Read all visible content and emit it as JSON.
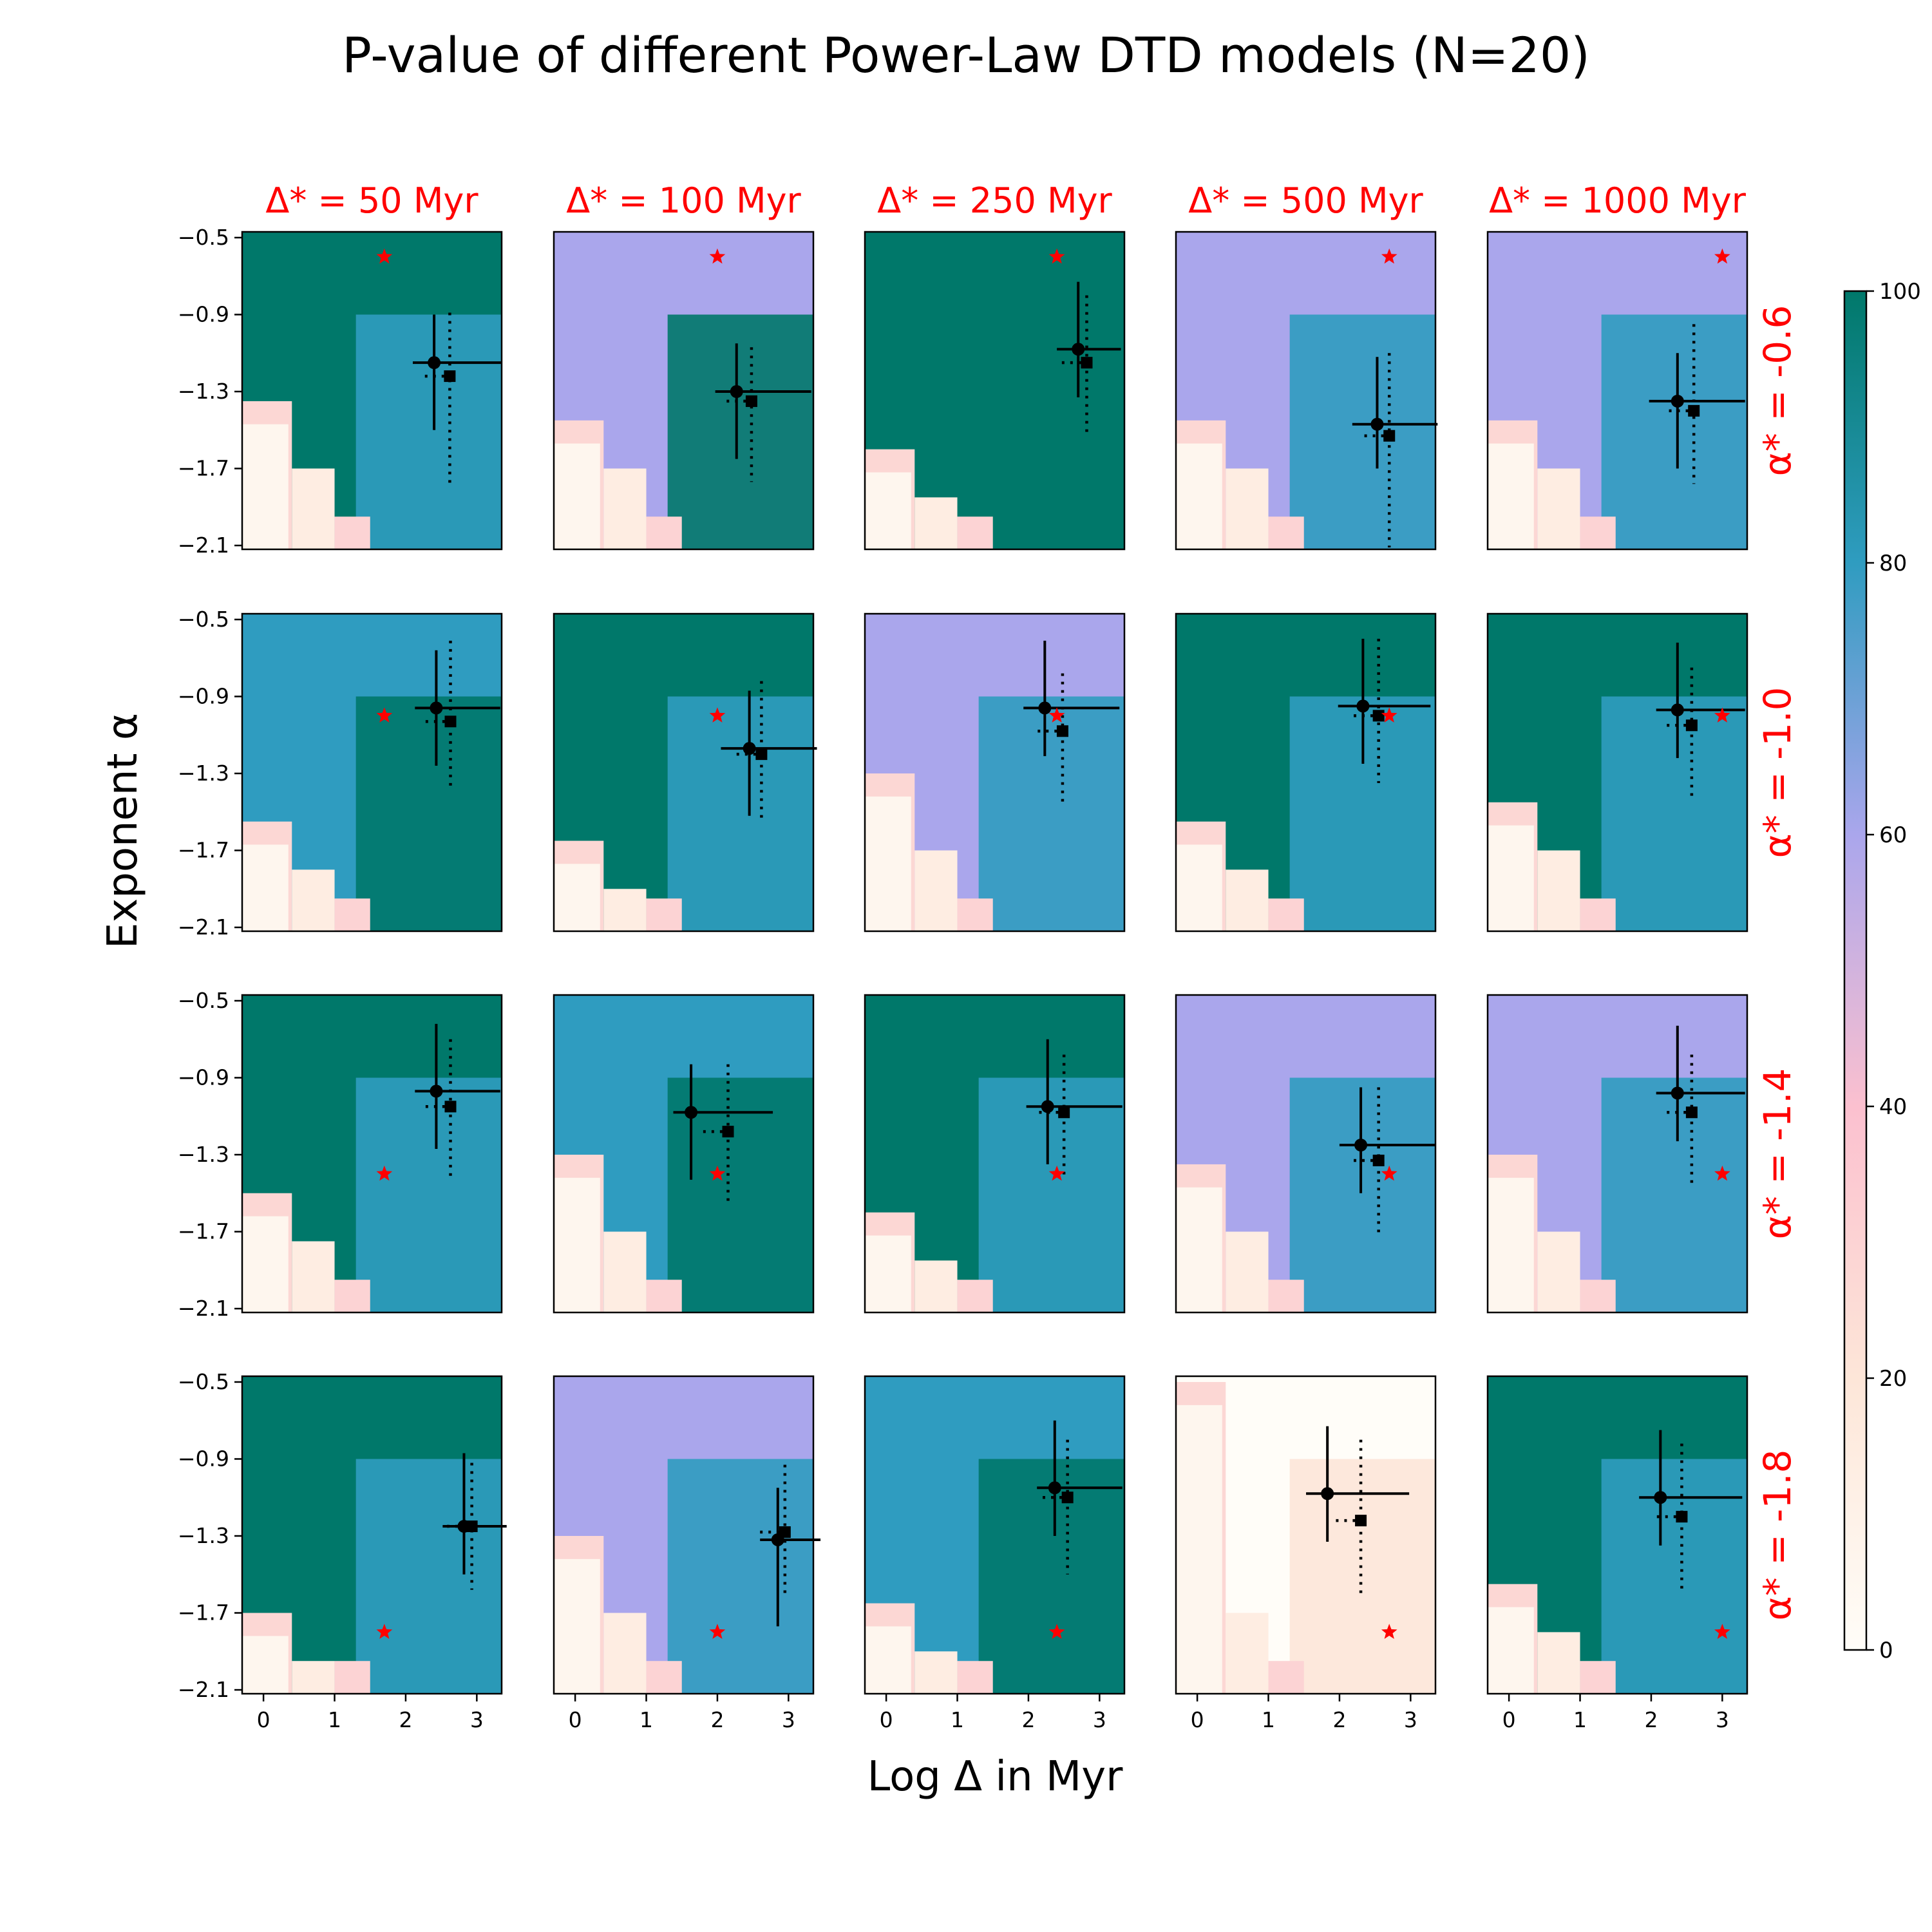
{
  "figure": {
    "title": "P-value of different Power-Law DTD models (N=20)",
    "xlabel": "Log Δ in Myr",
    "ylabel": "Exponent α"
  },
  "chart_data": {
    "type": "heatmap",
    "grid": {
      "rows": 4,
      "cols": 5
    },
    "x_ticks": [
      0,
      1,
      2,
      3
    ],
    "x_tick_labels": [
      "0",
      "1",
      "2",
      "3"
    ],
    "xlim": [
      -0.3,
      3.35
    ],
    "y_ticks": [
      -0.5,
      -0.9,
      -1.3,
      -1.7,
      -2.1
    ],
    "y_tick_labels": [
      "−0.5",
      "−0.9",
      "−1.3",
      "−1.7",
      "−2.1"
    ],
    "ylim": [
      -2.12,
      -0.47
    ],
    "column_titles": [
      "Δ* = 50 Myr",
      "Δ* = 100 Myr",
      "Δ* = 250 Myr",
      "Δ* = 500 Myr",
      "Δ* = 1000 Myr"
    ],
    "row_titles": [
      "α* = -0.6",
      "α* = -1.0",
      "α* = -1.4",
      "α* = -1.8"
    ],
    "true_log_delta": [
      1.7,
      2.0,
      2.4,
      2.7,
      3.0
    ],
    "true_alpha": [
      -0.6,
      -1.0,
      -1.4,
      -1.8
    ],
    "colorbar": {
      "min": 0,
      "max": 100,
      "ticks": [
        0,
        20,
        40,
        60,
        80,
        100
      ],
      "tick_labels": [
        "0",
        "20",
        "40",
        "60",
        "80",
        "100"
      ],
      "stops": [
        "#fffdf8",
        "#fde6d8",
        "#fbc0cf",
        "#aaa6ec",
        "#2f9cc0",
        "#00786a"
      ]
    },
    "panels": [
      [
        {
          "dominant": "#00786a",
          "bg": "#2f9cc0",
          "low_start": -0.3,
          "low_alpha": -1.35,
          "p_est": {
            "x": 2.4,
            "y": -1.15,
            "xerr": [
              0.3,
              0.95
            ],
            "yerr": [
              0.25,
              0.35
            ]
          },
          "p_med": {
            "x": 2.62,
            "y": -1.22,
            "yerr": [
              0.33,
              0.58
            ]
          }
        },
        {
          "dominant": "#aaa6ec",
          "bg": "#00786a",
          "low_start": -0.3,
          "low_alpha": -1.45,
          "p_est": {
            "x": 2.27,
            "y": -1.3,
            "xerr": [
              0.3,
              1.05
            ],
            "yerr": [
              0.25,
              0.35
            ]
          },
          "p_med": {
            "x": 2.48,
            "y": -1.35,
            "yerr": [
              0.28,
              0.42
            ]
          }
        },
        {
          "dominant": "#00786a",
          "bg": "#00786a",
          "low_start": -0.3,
          "low_alpha": -1.6,
          "p_est": {
            "x": 2.7,
            "y": -1.08,
            "xerr": [
              0.3,
              0.6
            ],
            "yerr": [
              0.35,
              0.25
            ]
          },
          "p_med": {
            "x": 2.82,
            "y": -1.15,
            "yerr": [
              0.35,
              0.38
            ]
          }
        },
        {
          "dominant": "#aaa6ec",
          "bg": "#2f9cc0",
          "low_start": -0.3,
          "low_alpha": -1.45,
          "p_est": {
            "x": 2.53,
            "y": -1.47,
            "xerr": [
              0.35,
              0.85
            ],
            "yerr": [
              0.35,
              0.23
            ]
          },
          "p_med": {
            "x": 2.7,
            "y": -1.53,
            "yerr": [
              0.43,
              0.58
            ]
          }
        },
        {
          "dominant": "#aaa6ec",
          "bg": "#2f9cc0",
          "low_start": -0.3,
          "low_alpha": -1.45,
          "p_est": {
            "x": 2.37,
            "y": -1.35,
            "xerr": [
              0.4,
              0.95
            ],
            "yerr": [
              0.25,
              0.35
            ]
          },
          "p_med": {
            "x": 2.6,
            "y": -1.4,
            "yerr": [
              0.45,
              0.38
            ]
          }
        }
      ],
      [
        {
          "dominant": "#2f9cc0",
          "bg": "#00786a",
          "low_start": -0.3,
          "low_alpha": -1.55,
          "p_est": {
            "x": 2.43,
            "y": -0.96,
            "xerr": [
              0.3,
              0.9
            ],
            "yerr": [
              0.3,
              0.3
            ]
          },
          "p_med": {
            "x": 2.63,
            "y": -1.03,
            "yerr": [
              0.42,
              0.35
            ]
          }
        },
        {
          "dominant": "#00786a",
          "bg": "#2f9cc0",
          "low_start": -0.3,
          "low_alpha": -1.65,
          "p_est": {
            "x": 2.45,
            "y": -1.17,
            "xerr": [
              0.4,
              0.95
            ],
            "yerr": [
              0.3,
              0.35
            ]
          },
          "p_med": {
            "x": 2.62,
            "y": -1.2,
            "yerr": [
              0.38,
              0.35
            ]
          }
        },
        {
          "dominant": "#aaa6ec",
          "bg": "#2f9cc0",
          "low_start": -0.3,
          "low_alpha": -1.3,
          "p_est": {
            "x": 2.23,
            "y": -0.96,
            "xerr": [
              0.3,
              1.05
            ],
            "yerr": [
              0.35,
              0.25
            ]
          },
          "p_med": {
            "x": 2.48,
            "y": -1.08,
            "yerr": [
              0.3,
              0.38
            ]
          }
        },
        {
          "dominant": "#00786a",
          "bg": "#2f9cc0",
          "low_start": -0.3,
          "low_alpha": -1.55,
          "p_est": {
            "x": 2.33,
            "y": -0.95,
            "xerr": [
              0.35,
              0.95
            ],
            "yerr": [
              0.35,
              0.3
            ]
          },
          "p_med": {
            "x": 2.55,
            "y": -1.0,
            "yerr": [
              0.4,
              0.35
            ]
          }
        },
        {
          "dominant": "#00786a",
          "bg": "#2f9cc0",
          "low_start": -0.3,
          "low_alpha": -1.45,
          "p_est": {
            "x": 2.37,
            "y": -0.97,
            "xerr": [
              0.3,
              0.95
            ],
            "yerr": [
              0.35,
              0.25
            ]
          },
          "p_med": {
            "x": 2.57,
            "y": -1.05,
            "yerr": [
              0.3,
              0.38
            ]
          }
        }
      ],
      [
        {
          "dominant": "#00786a",
          "bg": "#2f9cc0",
          "low_start": -0.3,
          "low_alpha": -1.5,
          "p_est": {
            "x": 2.43,
            "y": -0.97,
            "xerr": [
              0.3,
              0.9
            ],
            "yerr": [
              0.35,
              0.3
            ]
          },
          "p_med": {
            "x": 2.63,
            "y": -1.05,
            "yerr": [
              0.35,
              0.38
            ]
          }
        },
        {
          "dominant": "#2f9cc0",
          "bg": "#00786a",
          "low_start": -0.3,
          "low_alpha": -1.3,
          "p_est": {
            "x": 1.63,
            "y": -1.08,
            "xerr": [
              0.25,
              1.15
            ],
            "yerr": [
              0.25,
              0.35
            ]
          },
          "p_med": {
            "x": 2.15,
            "y": -1.18,
            "yerr": [
              0.35,
              0.38
            ]
          }
        },
        {
          "dominant": "#00786a",
          "bg": "#2f9cc0",
          "low_start": -0.3,
          "low_alpha": -1.6,
          "p_est": {
            "x": 2.27,
            "y": -1.05,
            "xerr": [
              0.3,
              1.05
            ],
            "yerr": [
              0.35,
              0.3
            ]
          },
          "p_med": {
            "x": 2.5,
            "y": -1.08,
            "yerr": [
              0.3,
              0.35
            ]
          }
        },
        {
          "dominant": "#aaa6ec",
          "bg": "#2f9cc0",
          "low_start": -0.3,
          "low_alpha": -1.35,
          "p_est": {
            "x": 2.3,
            "y": -1.25,
            "xerr": [
              0.3,
              1.05
            ],
            "yerr": [
              0.3,
              0.25
            ]
          },
          "p_med": {
            "x": 2.55,
            "y": -1.33,
            "yerr": [
              0.38,
              0.38
            ]
          }
        },
        {
          "dominant": "#aaa6ec",
          "bg": "#2f9cc0",
          "low_start": -0.3,
          "low_alpha": -1.3,
          "p_est": {
            "x": 2.37,
            "y": -0.98,
            "xerr": [
              0.3,
              0.95
            ],
            "yerr": [
              0.35,
              0.25
            ]
          },
          "p_med": {
            "x": 2.57,
            "y": -1.08,
            "yerr": [
              0.3,
              0.38
            ]
          }
        }
      ],
      [
        {
          "dominant": "#00786a",
          "bg": "#2f9cc0",
          "low_start": -0.3,
          "low_alpha": -1.7,
          "p_est": {
            "x": 2.82,
            "y": -1.25,
            "xerr": [
              0.3,
              0.6
            ],
            "yerr": [
              0.38,
              0.25
            ]
          },
          "p_med": {
            "x": 2.93,
            "y": -1.25,
            "yerr": [
              0.33,
              0.33
            ]
          }
        },
        {
          "dominant": "#aaa6ec",
          "bg": "#2f9cc0",
          "low_start": -0.3,
          "low_alpha": -1.3,
          "p_est": {
            "x": 2.85,
            "y": -1.32,
            "xerr": [
              0.25,
              0.6
            ],
            "yerr": [
              0.27,
              0.45
            ]
          },
          "p_med": {
            "x": 2.95,
            "y": -1.28,
            "yerr": [
              0.35,
              0.33
            ]
          }
        },
        {
          "dominant": "#2f9cc0",
          "bg": "#00786a",
          "low_start": -0.3,
          "low_alpha": -1.65,
          "p_est": {
            "x": 2.37,
            "y": -1.05,
            "xerr": [
              0.25,
              0.95
            ],
            "yerr": [
              0.35,
              0.25
            ]
          },
          "p_med": {
            "x": 2.55,
            "y": -1.1,
            "yerr": [
              0.3,
              0.4
            ]
          }
        },
        {
          "dominant": "#fffdf8",
          "bg": "#fde6d8",
          "low_start": -0.3,
          "low_alpha": -0.5,
          "p_est": {
            "x": 1.83,
            "y": -1.08,
            "xerr": [
              0.3,
              1.15
            ],
            "yerr": [
              0.35,
              0.25
            ]
          },
          "p_med": {
            "x": 2.3,
            "y": -1.22,
            "yerr": [
              0.42,
              0.38
            ]
          }
        },
        {
          "dominant": "#00786a",
          "bg": "#2f9cc0",
          "low_start": -0.3,
          "low_alpha": -1.55,
          "p_est": {
            "x": 2.13,
            "y": -1.1,
            "xerr": [
              0.3,
              1.15
            ],
            "yerr": [
              0.35,
              0.25
            ]
          },
          "p_med": {
            "x": 2.43,
            "y": -1.2,
            "yerr": [
              0.38,
              0.38
            ]
          }
        }
      ]
    ]
  }
}
